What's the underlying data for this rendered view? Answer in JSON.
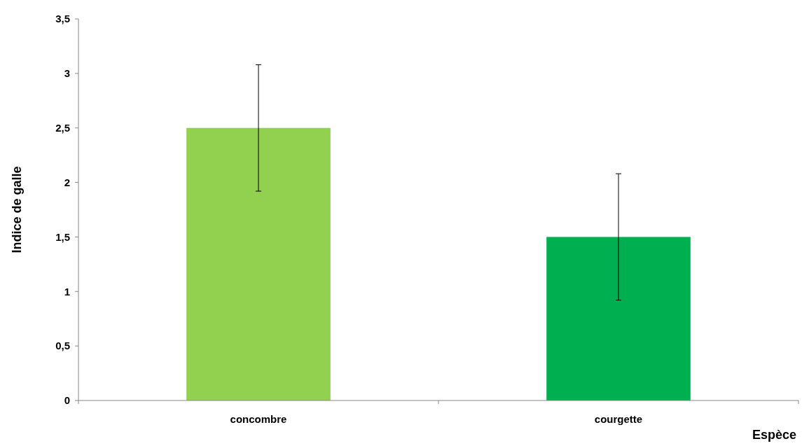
{
  "chart_data": {
    "type": "bar",
    "xlabel": "Espèce",
    "ylabel": "Indice de galle",
    "categories": [
      "concombre",
      "courgette"
    ],
    "values": [
      2.5,
      1.5
    ],
    "colors": [
      "#92d050",
      "#00b050"
    ],
    "errors": [
      0.58,
      0.58
    ],
    "ylim": [
      0,
      3.5
    ],
    "yticks": [
      0,
      {
        "value": 0.5,
        "label": "0,5"
      },
      1,
      {
        "value": 1.5,
        "label": "1,5"
      },
      2,
      {
        "value": 2.5,
        "label": "2,5"
      },
      3,
      {
        "value": 3.5,
        "label": "3,5"
      }
    ],
    "grid": false
  }
}
